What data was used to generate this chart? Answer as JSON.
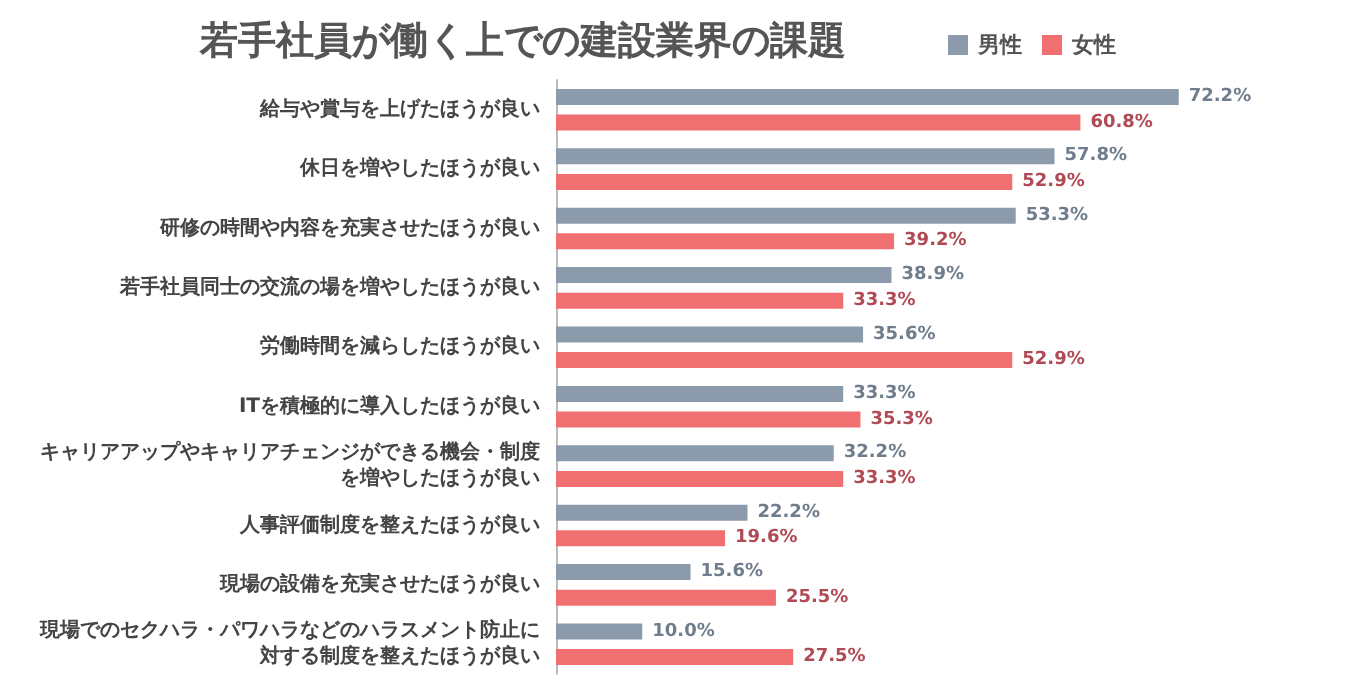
{
  "chart_data": {
    "type": "bar",
    "orientation": "horizontal",
    "title": "若手社員が働く上での建設業界の課題",
    "legend": "top right",
    "categories": [
      "給与や賞与を上げたほうが良い",
      "休日を増やしたほうが良い",
      "研修の時間や内容を充実させたほうが良い",
      "若手社員同士の交流の場を増やしたほうが良い",
      "労働時間を減らしたほうが良い",
      "ITを積極的に導入したほうが良い",
      "キャリアアップやキャリアチェンジができる機会・制度を増やしたほうが良い",
      "人事評価制度を整えたほうが良い",
      "現場の設備を充実させたほうが良い",
      "現場でのセクハラ・パワハラなどのハラスメント防止に対する制度を整えたほうが良い"
    ],
    "series": [
      {
        "name": "男性",
        "color": "#8c9bab",
        "values": [
          72.2,
          57.8,
          53.3,
          38.9,
          35.6,
          33.3,
          32.2,
          22.2,
          15.6,
          10.0
        ],
        "value_labels": [
          "72.2%",
          "57.8%",
          "53.3%",
          "38.9%",
          "35.6%",
          "33.3%",
          "32.2%",
          "22.2%",
          "15.6%",
          "10.0%"
        ]
      },
      {
        "name": "女性",
        "color": "#f07072",
        "values": [
          60.8,
          52.9,
          39.2,
          33.3,
          52.9,
          35.3,
          33.3,
          19.6,
          25.5,
          27.5
        ],
        "value_labels": [
          "60.8%",
          "52.9%",
          "39.2%",
          "33.3%",
          "52.9%",
          "35.3%",
          "33.3%",
          "19.6%",
          "25.5%",
          "27.5%"
        ]
      }
    ]
  }
}
